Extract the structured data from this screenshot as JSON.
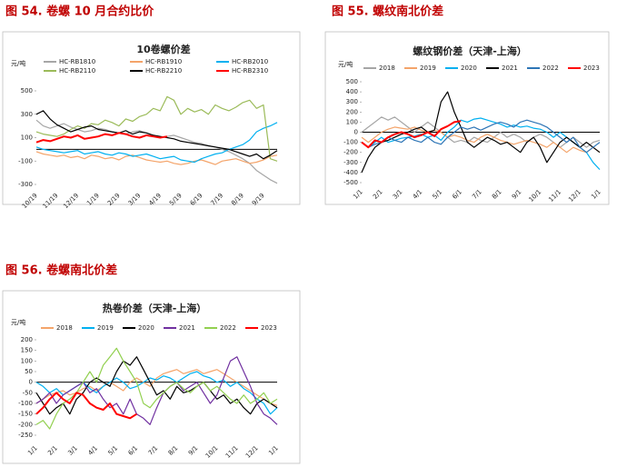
{
  "chart_data": [
    {
      "type": "line",
      "caption": "图 54. 卷螺 10 月合约比价",
      "title": "10卷螺价差",
      "ylabel": "元/吨",
      "categories": [
        "10/19",
        null,
        null,
        "11/19",
        null,
        null,
        "12/19",
        null,
        null,
        "1/19",
        null,
        null,
        "2/19",
        null,
        null,
        "3/19",
        null,
        null,
        "4/19",
        null,
        null,
        "5/19",
        null,
        null,
        "6/19",
        null,
        null,
        "7/19",
        null,
        null,
        "8/19",
        null,
        null,
        "9/19",
        null,
        null
      ],
      "ylim": [
        -300,
        500
      ],
      "yticks": [
        -300,
        -100,
        100,
        300,
        500
      ],
      "legend": "top",
      "series": [
        {
          "name": "HC-RB1810",
          "color": "#a6a6a6",
          "values": [
            250,
            200,
            180,
            200,
            220,
            190,
            170,
            150,
            160,
            180,
            170,
            150,
            140,
            130,
            150,
            160,
            140,
            120,
            100,
            110,
            120,
            100,
            80,
            60,
            50,
            30,
            20,
            0,
            -20,
            -50,
            -80,
            -120,
            -180,
            -220,
            -260,
            -290
          ]
        },
        {
          "name": "HC-RB1910",
          "color": "#f4a46a",
          "values": [
            -20,
            -40,
            -50,
            -60,
            -50,
            -70,
            -60,
            -80,
            -50,
            -60,
            -80,
            -70,
            -90,
            -60,
            -50,
            -70,
            -90,
            -100,
            -110,
            -100,
            -120,
            -130,
            -120,
            -100,
            -90,
            -110,
            -130,
            -100,
            -90,
            -80,
            -100,
            -120,
            -110,
            -90,
            -60,
            -50
          ]
        },
        {
          "name": "HC-RB2010",
          "color": "#00b0f0",
          "values": [
            20,
            0,
            -10,
            -20,
            -30,
            -20,
            -10,
            -40,
            -30,
            -20,
            -40,
            -50,
            -30,
            -40,
            -60,
            -50,
            -40,
            -60,
            -80,
            -70,
            -60,
            -90,
            -100,
            -110,
            -80,
            -60,
            -40,
            -30,
            0,
            20,
            40,
            80,
            150,
            180,
            200,
            230
          ]
        },
        {
          "name": "HC-RB2110",
          "color": "#9bbb59",
          "values": [
            150,
            130,
            120,
            110,
            130,
            170,
            200,
            180,
            220,
            210,
            250,
            230,
            200,
            260,
            240,
            280,
            300,
            350,
            330,
            450,
            420,
            300,
            350,
            320,
            340,
            300,
            380,
            350,
            330,
            360,
            400,
            420,
            350,
            380,
            -80,
            -100
          ]
        },
        {
          "name": "HC-RB2210",
          "color": "#000000",
          "values": [
            300,
            330,
            260,
            210,
            180,
            150,
            170,
            190,
            200,
            170,
            160,
            150,
            140,
            160,
            130,
            150,
            140,
            120,
            110,
            100,
            90,
            70,
            60,
            50,
            40,
            30,
            20,
            10,
            0,
            -20,
            -40,
            -60,
            -40,
            -80,
            -50,
            -10
          ]
        },
        {
          "name": "HC-RB2310",
          "color": "#ff0000",
          "values": [
            60,
            80,
            70,
            90,
            110,
            100,
            120,
            90,
            100,
            110,
            130,
            120,
            140,
            130,
            110,
            100,
            120,
            110,
            100,
            110,
            null,
            null,
            null,
            null,
            null,
            null,
            null,
            null,
            null,
            null,
            null,
            null,
            null,
            null,
            null,
            null
          ]
        }
      ]
    },
    {
      "type": "line",
      "caption": "图 55. 螺纹南北价差",
      "title": "螺纹钢价差（天津-上海）",
      "ylabel": "元/吨",
      "categories": [
        "1/1",
        null,
        null,
        "2/1",
        null,
        null,
        "3/1",
        null,
        null,
        "4/1",
        null,
        null,
        "5/1",
        null,
        null,
        "6/1",
        null,
        null,
        "7/1",
        null,
        null,
        "8/1",
        null,
        null,
        "9/1",
        null,
        null,
        "10/1",
        null,
        null,
        "11/1",
        null,
        null,
        "12/1",
        null,
        null,
        "1/1"
      ],
      "ylim": [
        -500,
        500
      ],
      "yticks": [
        -500,
        -400,
        -300,
        -200,
        -100,
        0,
        100,
        200,
        300,
        400,
        500
      ],
      "legend": "top",
      "series": [
        {
          "name": "2018",
          "color": "#a6a6a6",
          "values": [
            0,
            50,
            100,
            150,
            120,
            150,
            100,
            50,
            0,
            50,
            100,
            50,
            0,
            -50,
            -100,
            -80,
            -100,
            -50,
            -80,
            -100,
            -50,
            0,
            -50,
            -20,
            -50,
            -100,
            -50,
            -20,
            -50,
            -100,
            -150,
            -100,
            -50,
            -100,
            -150,
            -100,
            -80
          ]
        },
        {
          "name": "2019",
          "color": "#f4a46a",
          "values": [
            -50,
            -100,
            -50,
            0,
            30,
            50,
            40,
            30,
            50,
            20,
            0,
            20,
            0,
            -50,
            -30,
            -50,
            -80,
            -100,
            -50,
            -20,
            -50,
            -80,
            -100,
            -120,
            -100,
            -80,
            -100,
            -120,
            -150,
            -100,
            -150,
            -200,
            -150,
            -180,
            -200,
            -150,
            -200
          ]
        },
        {
          "name": "2020",
          "color": "#00b0f0",
          "values": [
            -100,
            -150,
            -100,
            -50,
            -100,
            -80,
            -60,
            -50,
            -40,
            -20,
            -50,
            -30,
            -80,
            0,
            50,
            120,
            100,
            130,
            140,
            120,
            100,
            80,
            50,
            70,
            50,
            60,
            40,
            30,
            0,
            -50,
            0,
            -50,
            -100,
            -150,
            -200,
            -300,
            -370
          ]
        },
        {
          "name": "2021",
          "color": "#000000",
          "values": [
            -400,
            -250,
            -150,
            -100,
            -80,
            -50,
            -20,
            0,
            30,
            50,
            0,
            20,
            300,
            400,
            200,
            50,
            -100,
            -150,
            -100,
            -50,
            -80,
            -120,
            -100,
            -150,
            -200,
            -100,
            -50,
            -150,
            -300,
            -200,
            -100,
            -50,
            -100,
            -150,
            -100,
            -150,
            -200
          ]
        },
        {
          "name": "2022",
          "color": "#2e75b6",
          "values": [
            -100,
            -150,
            -120,
            -100,
            -50,
            -80,
            -100,
            -50,
            -80,
            -100,
            -50,
            -100,
            -120,
            -50,
            0,
            50,
            30,
            50,
            20,
            50,
            80,
            100,
            80,
            50,
            100,
            120,
            100,
            80,
            50,
            0,
            -50,
            -100,
            -50,
            -150,
            -200,
            -150,
            -100
          ]
        },
        {
          "name": "2023",
          "color": "#ff0000",
          "values": [
            -100,
            -150,
            -80,
            -100,
            -50,
            -20,
            0,
            -20,
            -50,
            -30,
            0,
            -40,
            30,
            60,
            100,
            110,
            null,
            null,
            null,
            null,
            null,
            null,
            null,
            null,
            null,
            null,
            null,
            null,
            null,
            null,
            null,
            null,
            null,
            null,
            null,
            null,
            null
          ]
        }
      ]
    },
    {
      "type": "line",
      "caption": "图 56. 卷螺南北价差",
      "title": "热卷价差（天津-上海）",
      "ylabel": "元/吨",
      "categories": [
        "1/1",
        null,
        null,
        "2/1",
        null,
        null,
        "3/1",
        null,
        null,
        "4/1",
        null,
        null,
        "5/1",
        null,
        null,
        "6/1",
        null,
        null,
        "7/1",
        null,
        null,
        "8/1",
        null,
        null,
        "9/1",
        null,
        null,
        "10/1",
        null,
        null,
        "11/1",
        null,
        null,
        "12/1",
        null,
        null,
        "1/1"
      ],
      "ylim": [
        -250,
        200
      ],
      "yticks": [
        -250,
        -200,
        -150,
        -100,
        -50,
        0,
        50,
        100,
        150,
        200
      ],
      "legend": "top",
      "series": [
        {
          "name": "2018",
          "color": "#f4a46a",
          "values": [
            -100,
            -80,
            -60,
            -50,
            -40,
            -60,
            -50,
            -30,
            -20,
            -40,
            -20,
            0,
            -20,
            -40,
            0,
            20,
            0,
            -20,
            20,
            40,
            50,
            60,
            40,
            50,
            60,
            40,
            50,
            60,
            40,
            20,
            0,
            -20,
            -40,
            -60,
            -80,
            -100,
            -110
          ]
        },
        {
          "name": "2019",
          "color": "#00b0f0",
          "values": [
            0,
            -20,
            -50,
            -30,
            -60,
            -40,
            -20,
            0,
            -30,
            -50,
            -20,
            0,
            20,
            0,
            -30,
            -20,
            0,
            20,
            10,
            30,
            20,
            0,
            20,
            40,
            50,
            30,
            20,
            0,
            10,
            -20,
            0,
            -30,
            -50,
            -80,
            -100,
            -150,
            -120
          ]
        },
        {
          "name": "2020",
          "color": "#000000",
          "values": [
            -50,
            -100,
            -150,
            -120,
            -100,
            -150,
            -80,
            -50,
            0,
            20,
            0,
            -20,
            50,
            100,
            80,
            120,
            60,
            0,
            -60,
            -40,
            -80,
            -20,
            -50,
            -40,
            -20,
            0,
            -40,
            -80,
            -60,
            -100,
            -80,
            -120,
            -150,
            -100,
            -80,
            -100,
            -120
          ]
        },
        {
          "name": "2021",
          "color": "#7030a0",
          "values": [
            -100,
            -80,
            -50,
            -100,
            -60,
            -40,
            -20,
            0,
            -50,
            -30,
            -80,
            -120,
            -100,
            -150,
            -80,
            -150,
            -170,
            -200,
            -120,
            -50,
            -20,
            0,
            -40,
            -20,
            0,
            -50,
            -100,
            -60,
            20,
            100,
            120,
            50,
            -20,
            -100,
            -150,
            -170,
            -200
          ]
        },
        {
          "name": "2022",
          "color": "#92d050",
          "values": [
            -200,
            -180,
            -220,
            -150,
            -100,
            -80,
            -50,
            0,
            50,
            0,
            80,
            120,
            160,
            100,
            50,
            0,
            -100,
            -120,
            -80,
            -50,
            -20,
            0,
            -30,
            -50,
            -20,
            0,
            -40,
            -20,
            -50,
            -80,
            -100,
            -60,
            -100,
            -80,
            -50,
            -100,
            -80
          ]
        },
        {
          "name": "2023",
          "color": "#ff0000",
          "values": [
            -150,
            -120,
            -80,
            -50,
            -80,
            -100,
            -50,
            -60,
            -100,
            -120,
            -130,
            -100,
            -150,
            -160,
            -170,
            -150,
            null,
            null,
            null,
            null,
            null,
            null,
            null,
            null,
            null,
            null,
            null,
            null,
            null,
            null,
            null,
            null,
            null,
            null,
            null,
            null,
            null
          ]
        }
      ]
    }
  ]
}
